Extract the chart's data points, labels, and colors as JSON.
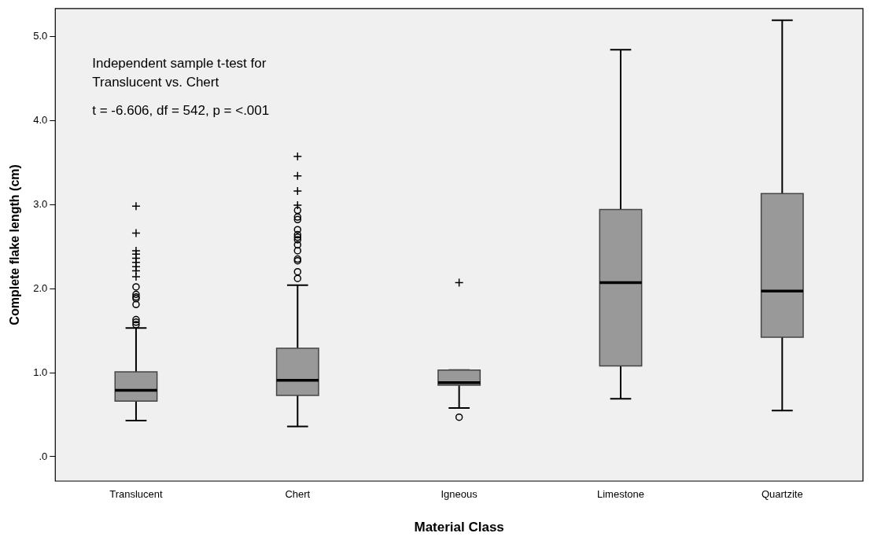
{
  "chart_data": {
    "type": "box",
    "xlabel": "Material Class",
    "ylabel": "Complete flake length (cm)",
    "categories": [
      "Translucent",
      "Chert",
      "Igneous",
      "Limestone",
      "Quartzite"
    ],
    "ylim": [
      -0.29,
      5.33
    ],
    "yticks": [
      {
        "value": 0,
        "label": ".0"
      },
      {
        "value": 1,
        "label": "1.0"
      },
      {
        "value": 2,
        "label": "2.0"
      },
      {
        "value": 3,
        "label": "3.0"
      },
      {
        "value": 4,
        "label": "4.0"
      },
      {
        "value": 5,
        "label": "5.0"
      }
    ],
    "grid": false,
    "legend": false,
    "annotations": [
      "Independent sample t-test for Translucent vs. Chert",
      "t = -6.606, df = 542, p = <.001"
    ],
    "series": [
      {
        "type": "box",
        "color": "#999999",
        "boxes": [
          {
            "low": 0.43,
            "q1": 0.66,
            "median": 0.79,
            "q3": 1.01,
            "high": 1.53,
            "outliers": [
              2.02,
              1.93,
              1.9,
              1.88,
              1.81,
              1.63,
              1.6,
              1.57
            ]
          },
          {
            "low": 0.36,
            "q1": 0.73,
            "median": 0.91,
            "q3": 1.29,
            "high": 2.04,
            "outliers": [
              2.93,
              2.85,
              2.82,
              2.7,
              2.64,
              2.61,
              2.58,
              2.52,
              2.45,
              2.35,
              2.33,
              2.2,
              2.12
            ]
          },
          {
            "low": 0.58,
            "q1": 0.85,
            "median": 0.88,
            "q3": 1.03,
            "high": 1.03,
            "outliers": [
              0.47
            ]
          },
          {
            "low": 0.69,
            "q1": 1.08,
            "median": 2.07,
            "q3": 2.94,
            "high": 4.84
          },
          {
            "low": 0.55,
            "q1": 1.42,
            "median": 1.97,
            "q3": 3.13,
            "high": 5.19
          }
        ]
      },
      {
        "type": "scatter",
        "marker": "cross",
        "color": "#000000",
        "x": [
          "Translucent",
          "Translucent",
          "Translucent",
          "Translucent",
          "Translucent",
          "Translucent",
          "Translucent",
          "Translucent",
          "Translucent",
          "Chert",
          "Chert",
          "Chert",
          "Chert",
          "Igneous"
        ],
        "values": [
          2.98,
          2.66,
          2.45,
          2.41,
          2.36,
          2.31,
          2.26,
          2.21,
          2.14,
          3.57,
          3.34,
          3.16,
          2.99,
          2.07
        ]
      }
    ]
  }
}
